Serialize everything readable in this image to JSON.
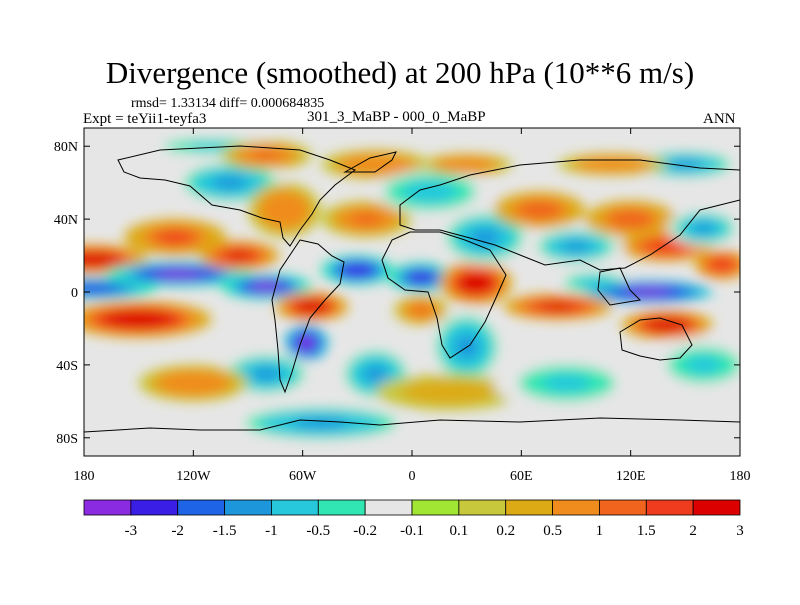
{
  "header": {
    "title": "Divergence (smoothed) at 200 hPa (10**6 m/s)",
    "stats": "rmsd= 1.33134 diff= 0.000684835",
    "experiment": "Expt = teYii1-teyfa3",
    "cases": "301_3_MaBP - 000_0_MaBP",
    "season": "ANN"
  },
  "map": {
    "lat_range": [
      -90,
      90
    ],
    "lon_range": [
      -180,
      180
    ],
    "lat_ticks": [
      {
        "value": 80,
        "label": "80N"
      },
      {
        "value": 40,
        "label": "40N"
      },
      {
        "value": 0,
        "label": "0"
      },
      {
        "value": -40,
        "label": "40S"
      },
      {
        "value": -80,
        "label": "80S"
      }
    ],
    "lon_ticks": [
      {
        "value": -180,
        "label": "180"
      },
      {
        "value": -120,
        "label": "120W"
      },
      {
        "value": -60,
        "label": "60W"
      },
      {
        "value": 0,
        "label": "0"
      },
      {
        "value": 60,
        "label": "60E"
      },
      {
        "value": 120,
        "label": "120E"
      },
      {
        "value": 180,
        "label": "180"
      }
    ],
    "features": [
      {
        "lon": -175,
        "lat": 18,
        "value": 2.8,
        "rx": 30,
        "ry": 8
      },
      {
        "lon": -175,
        "lat": 2,
        "value": -2.2,
        "rx": 35,
        "ry": 6
      },
      {
        "lon": -150,
        "lat": -15,
        "value": 3.2,
        "rx": 40,
        "ry": 10
      },
      {
        "lon": -128,
        "lat": 10,
        "value": -3.0,
        "rx": 40,
        "ry": 7
      },
      {
        "lon": -130,
        "lat": 30,
        "value": 1.6,
        "rx": 28,
        "ry": 10
      },
      {
        "lon": -100,
        "lat": 60,
        "value": -1.0,
        "rx": 30,
        "ry": 12
      },
      {
        "lon": -110,
        "lat": 80,
        "value": -0.6,
        "rx": 40,
        "ry": 6
      },
      {
        "lon": -95,
        "lat": 20,
        "value": 2.5,
        "rx": 22,
        "ry": 8
      },
      {
        "lon": -80,
        "lat": 3,
        "value": -3.2,
        "rx": 25,
        "ry": 7
      },
      {
        "lon": -70,
        "lat": 45,
        "value": 1.0,
        "rx": 20,
        "ry": 15
      },
      {
        "lon": -80,
        "lat": 75,
        "value": 1.2,
        "rx": 25,
        "ry": 8
      },
      {
        "lon": -55,
        "lat": -8,
        "value": 3.0,
        "rx": 20,
        "ry": 8
      },
      {
        "lon": -58,
        "lat": -28,
        "value": -3.4,
        "rx": 12,
        "ry": 10
      },
      {
        "lon": -80,
        "lat": -45,
        "value": -1.2,
        "rx": 25,
        "ry": 12
      },
      {
        "lon": -120,
        "lat": -50,
        "value": 1.0,
        "rx": 30,
        "ry": 10
      },
      {
        "lon": -50,
        "lat": -72,
        "value": -1.0,
        "rx": 50,
        "ry": 10
      },
      {
        "lon": -30,
        "lat": 12,
        "value": -2.8,
        "rx": 20,
        "ry": 8
      },
      {
        "lon": -25,
        "lat": 40,
        "value": 1.2,
        "rx": 25,
        "ry": 10
      },
      {
        "lon": -20,
        "lat": 70,
        "value": 1.0,
        "rx": 30,
        "ry": 8
      },
      {
        "lon": -20,
        "lat": -45,
        "value": -1.0,
        "rx": 20,
        "ry": 15
      },
      {
        "lon": 5,
        "lat": 8,
        "value": -2.5,
        "rx": 18,
        "ry": 8
      },
      {
        "lon": 5,
        "lat": -10,
        "value": 1.2,
        "rx": 15,
        "ry": 8
      },
      {
        "lon": 10,
        "lat": 55,
        "value": -0.8,
        "rx": 30,
        "ry": 12
      },
      {
        "lon": 30,
        "lat": 70,
        "value": 1.0,
        "rx": 25,
        "ry": 6
      },
      {
        "lon": 35,
        "lat": 5,
        "value": 3.0,
        "rx": 20,
        "ry": 12
      },
      {
        "lon": 40,
        "lat": 30,
        "value": -1.0,
        "rx": 25,
        "ry": 15
      },
      {
        "lon": 30,
        "lat": -30,
        "value": -1.0,
        "rx": 20,
        "ry": 20
      },
      {
        "lon": 20,
        "lat": -55,
        "value": 0.5,
        "rx": 40,
        "ry": 10
      },
      {
        "lon": 80,
        "lat": -8,
        "value": 2.5,
        "rx": 30,
        "ry": 7
      },
      {
        "lon": 70,
        "lat": 45,
        "value": 1.5,
        "rx": 25,
        "ry": 10
      },
      {
        "lon": 90,
        "lat": 25,
        "value": -1.2,
        "rx": 25,
        "ry": 10
      },
      {
        "lon": 100,
        "lat": 5,
        "value": -0.8,
        "rx": 20,
        "ry": 6
      },
      {
        "lon": 85,
        "lat": -50,
        "value": -0.6,
        "rx": 40,
        "ry": 15
      },
      {
        "lon": 120,
        "lat": 40,
        "value": 1.5,
        "rx": 25,
        "ry": 10
      },
      {
        "lon": 130,
        "lat": 0,
        "value": -3.5,
        "rx": 35,
        "ry": 6
      },
      {
        "lon": 140,
        "lat": -18,
        "value": 3.0,
        "rx": 25,
        "ry": 8
      },
      {
        "lon": 140,
        "lat": 25,
        "value": 2.0,
        "rx": 25,
        "ry": 8
      },
      {
        "lon": 160,
        "lat": 35,
        "value": -1.2,
        "rx": 20,
        "ry": 10
      },
      {
        "lon": 170,
        "lat": 15,
        "value": 2.0,
        "rx": 15,
        "ry": 8
      },
      {
        "lon": 150,
        "lat": 70,
        "value": -1.0,
        "rx": 30,
        "ry": 8
      },
      {
        "lon": 160,
        "lat": -40,
        "value": -0.5,
        "rx": 30,
        "ry": 15
      },
      {
        "lon": 110,
        "lat": 70,
        "value": 1.0,
        "rx": 30,
        "ry": 6
      }
    ]
  },
  "colorbar": {
    "colors": [
      "#8a2be2",
      "#3b1ee6",
      "#1e64e6",
      "#1e96dc",
      "#28c8dc",
      "#32e6b4",
      "#e6e6e6",
      "#a0e632",
      "#c8c83c",
      "#dcaa14",
      "#f08c1e",
      "#f0641e",
      "#f03c1e",
      "#dc0000"
    ],
    "labels": [
      "-3",
      "-2",
      "-1.5",
      "-1",
      "-0.5",
      "-0.2",
      "-0.1",
      "0.1",
      "0.2",
      "0.5",
      "1",
      "1.5",
      "2",
      "3"
    ]
  }
}
